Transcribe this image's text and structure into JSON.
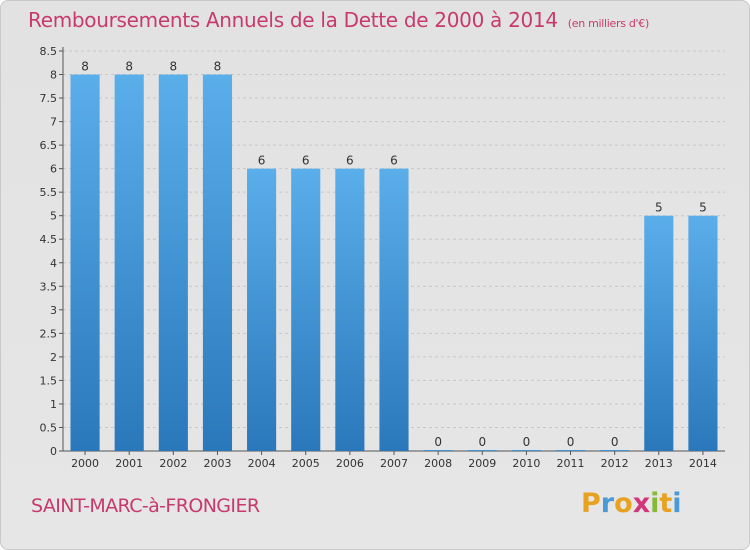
{
  "header": {
    "title": "Remboursements Annuels de la Dette de 2000 à 2014",
    "subtitle": "(en milliers d'€)"
  },
  "footer": {
    "place": "SAINT-MARC-à-FRONGIER",
    "logo_letters": [
      {
        "ch": "P",
        "color": "#e8a221"
      },
      {
        "ch": "r",
        "color": "#4a9ad8"
      },
      {
        "ch": "o",
        "color": "#e8a221"
      },
      {
        "ch": "x",
        "color": "#d2357a"
      },
      {
        "ch": "i",
        "color": "#86b934"
      },
      {
        "ch": "t",
        "color": "#e8a221"
      },
      {
        "ch": "i",
        "color": "#4a9ad8"
      }
    ]
  },
  "chart_data": {
    "type": "bar",
    "title": "Remboursements Annuels de la Dette de 2000 à 2014",
    "subtitle": "(en milliers d'€)",
    "xlabel": "",
    "ylabel": "",
    "categories": [
      "2000",
      "2001",
      "2002",
      "2003",
      "2004",
      "2005",
      "2006",
      "2007",
      "2008",
      "2009",
      "2010",
      "2011",
      "2012",
      "2013",
      "2014"
    ],
    "values": [
      8,
      8,
      8,
      8,
      6,
      6,
      6,
      6,
      0,
      0,
      0,
      0,
      0,
      5,
      5
    ],
    "data_labels": [
      "8",
      "8",
      "8",
      "8",
      "6",
      "6",
      "6",
      "6",
      "0",
      "0",
      "0",
      "0",
      "0",
      "5",
      "5"
    ],
    "ylim": [
      0,
      8.5
    ],
    "yticks": [
      "0",
      "0.5",
      "1",
      "1.5",
      "2",
      "2.5",
      "3",
      "3.5",
      "4",
      "4.5",
      "5",
      "5.5",
      "6",
      "6.5",
      "7",
      "7.5",
      "8",
      "8.5"
    ],
    "grid": true,
    "colors": {
      "bar_light": "#5aaeea",
      "bar_dark": "#2a78bb",
      "grid": "#c7c7c7"
    }
  }
}
